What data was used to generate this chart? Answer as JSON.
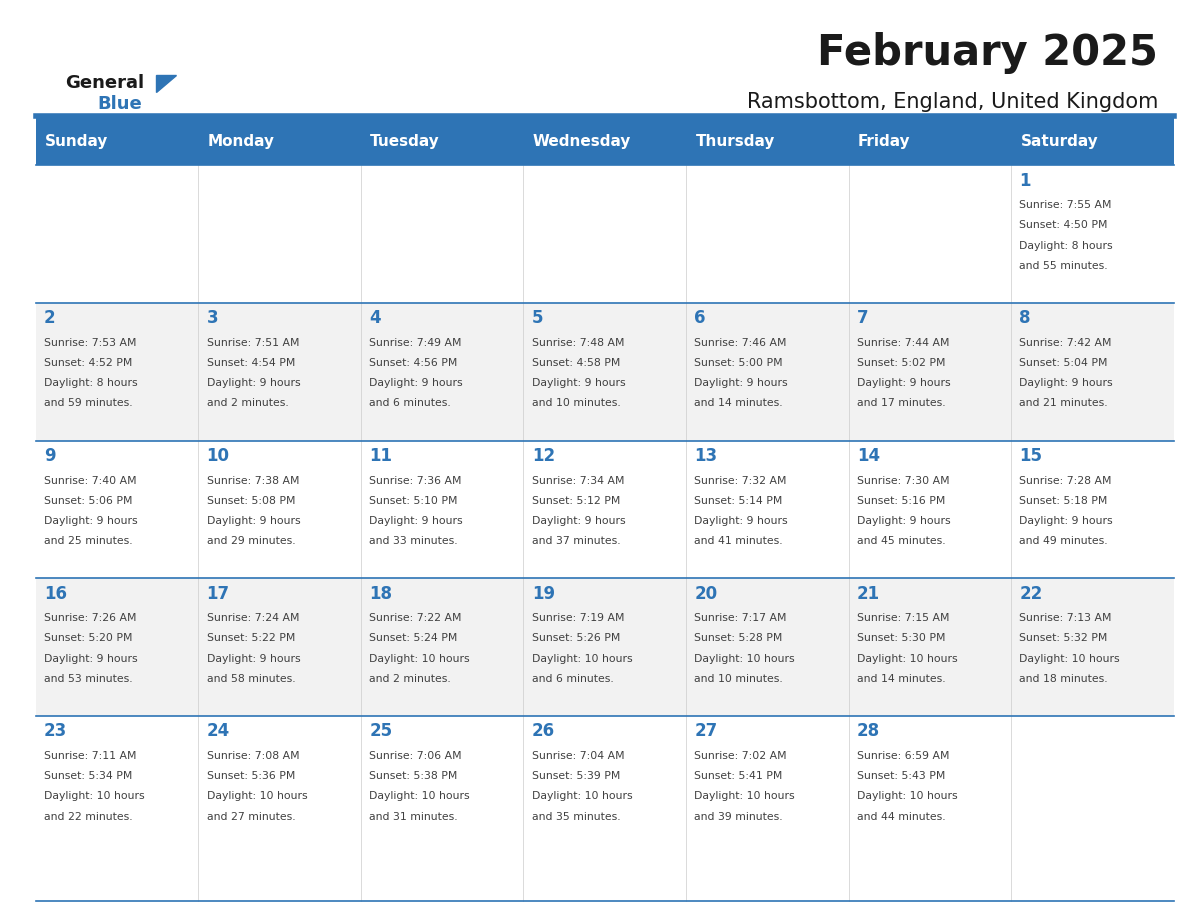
{
  "title": "February 2025",
  "subtitle": "Ramsbottom, England, United Kingdom",
  "days_of_week": [
    "Sunday",
    "Monday",
    "Tuesday",
    "Wednesday",
    "Thursday",
    "Friday",
    "Saturday"
  ],
  "header_bg": "#2E74B5",
  "header_text": "#FFFFFF",
  "row_bg_even": "#FFFFFF",
  "row_bg_odd": "#F2F2F2",
  "separator_color": "#2E74B5",
  "day_number_color": "#2E74B5",
  "cell_text_color": "#404040",
  "title_color": "#1a1a1a",
  "subtitle_color": "#1a1a1a",
  "logo_general_color": "#1a1a1a",
  "logo_blue_color": "#2E74B5",
  "calendar_data": [
    [
      {
        "day": null,
        "info": null
      },
      {
        "day": null,
        "info": null
      },
      {
        "day": null,
        "info": null
      },
      {
        "day": null,
        "info": null
      },
      {
        "day": null,
        "info": null
      },
      {
        "day": null,
        "info": null
      },
      {
        "day": 1,
        "info": "Sunrise: 7:55 AM\nSunset: 4:50 PM\nDaylight: 8 hours\nand 55 minutes."
      }
    ],
    [
      {
        "day": 2,
        "info": "Sunrise: 7:53 AM\nSunset: 4:52 PM\nDaylight: 8 hours\nand 59 minutes."
      },
      {
        "day": 3,
        "info": "Sunrise: 7:51 AM\nSunset: 4:54 PM\nDaylight: 9 hours\nand 2 minutes."
      },
      {
        "day": 4,
        "info": "Sunrise: 7:49 AM\nSunset: 4:56 PM\nDaylight: 9 hours\nand 6 minutes."
      },
      {
        "day": 5,
        "info": "Sunrise: 7:48 AM\nSunset: 4:58 PM\nDaylight: 9 hours\nand 10 minutes."
      },
      {
        "day": 6,
        "info": "Sunrise: 7:46 AM\nSunset: 5:00 PM\nDaylight: 9 hours\nand 14 minutes."
      },
      {
        "day": 7,
        "info": "Sunrise: 7:44 AM\nSunset: 5:02 PM\nDaylight: 9 hours\nand 17 minutes."
      },
      {
        "day": 8,
        "info": "Sunrise: 7:42 AM\nSunset: 5:04 PM\nDaylight: 9 hours\nand 21 minutes."
      }
    ],
    [
      {
        "day": 9,
        "info": "Sunrise: 7:40 AM\nSunset: 5:06 PM\nDaylight: 9 hours\nand 25 minutes."
      },
      {
        "day": 10,
        "info": "Sunrise: 7:38 AM\nSunset: 5:08 PM\nDaylight: 9 hours\nand 29 minutes."
      },
      {
        "day": 11,
        "info": "Sunrise: 7:36 AM\nSunset: 5:10 PM\nDaylight: 9 hours\nand 33 minutes."
      },
      {
        "day": 12,
        "info": "Sunrise: 7:34 AM\nSunset: 5:12 PM\nDaylight: 9 hours\nand 37 minutes."
      },
      {
        "day": 13,
        "info": "Sunrise: 7:32 AM\nSunset: 5:14 PM\nDaylight: 9 hours\nand 41 minutes."
      },
      {
        "day": 14,
        "info": "Sunrise: 7:30 AM\nSunset: 5:16 PM\nDaylight: 9 hours\nand 45 minutes."
      },
      {
        "day": 15,
        "info": "Sunrise: 7:28 AM\nSunset: 5:18 PM\nDaylight: 9 hours\nand 49 minutes."
      }
    ],
    [
      {
        "day": 16,
        "info": "Sunrise: 7:26 AM\nSunset: 5:20 PM\nDaylight: 9 hours\nand 53 minutes."
      },
      {
        "day": 17,
        "info": "Sunrise: 7:24 AM\nSunset: 5:22 PM\nDaylight: 9 hours\nand 58 minutes."
      },
      {
        "day": 18,
        "info": "Sunrise: 7:22 AM\nSunset: 5:24 PM\nDaylight: 10 hours\nand 2 minutes."
      },
      {
        "day": 19,
        "info": "Sunrise: 7:19 AM\nSunset: 5:26 PM\nDaylight: 10 hours\nand 6 minutes."
      },
      {
        "day": 20,
        "info": "Sunrise: 7:17 AM\nSunset: 5:28 PM\nDaylight: 10 hours\nand 10 minutes."
      },
      {
        "day": 21,
        "info": "Sunrise: 7:15 AM\nSunset: 5:30 PM\nDaylight: 10 hours\nand 14 minutes."
      },
      {
        "day": 22,
        "info": "Sunrise: 7:13 AM\nSunset: 5:32 PM\nDaylight: 10 hours\nand 18 minutes."
      }
    ],
    [
      {
        "day": 23,
        "info": "Sunrise: 7:11 AM\nSunset: 5:34 PM\nDaylight: 10 hours\nand 22 minutes."
      },
      {
        "day": 24,
        "info": "Sunrise: 7:08 AM\nSunset: 5:36 PM\nDaylight: 10 hours\nand 27 minutes."
      },
      {
        "day": 25,
        "info": "Sunrise: 7:06 AM\nSunset: 5:38 PM\nDaylight: 10 hours\nand 31 minutes."
      },
      {
        "day": 26,
        "info": "Sunrise: 7:04 AM\nSunset: 5:39 PM\nDaylight: 10 hours\nand 35 minutes."
      },
      {
        "day": 27,
        "info": "Sunrise: 7:02 AM\nSunset: 5:41 PM\nDaylight: 10 hours\nand 39 minutes."
      },
      {
        "day": 28,
        "info": "Sunrise: 6:59 AM\nSunset: 5:43 PM\nDaylight: 10 hours\nand 44 minutes."
      },
      {
        "day": null,
        "info": null
      }
    ]
  ]
}
